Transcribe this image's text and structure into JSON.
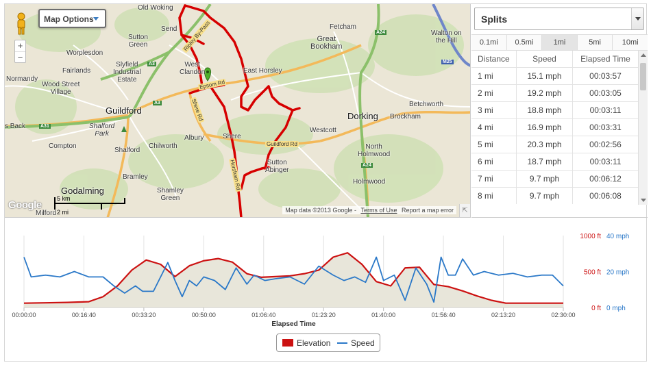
{
  "map": {
    "options_label": "Map Options",
    "zoom_in": "+",
    "zoom_out": "−",
    "google_logo": "Google",
    "scale_km": "5 km",
    "scale_mi": "2 mi",
    "attribution": "Map data ©2013 Google",
    "terms": "Terms of Use",
    "report": "Report a map error",
    "places": [
      {
        "text": "Old Woking",
        "size": "small"
      },
      {
        "text": "Send",
        "size": "small"
      },
      {
        "text": "Sutton\nGreen",
        "size": "small"
      },
      {
        "text": "Worplesdon",
        "size": "small"
      },
      {
        "text": "Fairlands",
        "size": "small"
      },
      {
        "text": "Slyfield\nIndustrial\nEstate",
        "size": "small"
      },
      {
        "text": "Normandy",
        "size": "small"
      },
      {
        "text": "Wood Street\nVillage",
        "size": "small"
      },
      {
        "text": "West\nClandon",
        "size": "small"
      },
      {
        "text": "Guildford",
        "size": "big"
      },
      {
        "text": "Shalford\nPark",
        "size": "small"
      },
      {
        "text": "Compton",
        "size": "small"
      },
      {
        "text": "Shalford",
        "size": "small"
      },
      {
        "text": "Chilworth",
        "size": "small"
      },
      {
        "text": "Albury",
        "size": "small"
      },
      {
        "text": "Shere",
        "size": "small"
      },
      {
        "text": "Bramley",
        "size": "small"
      },
      {
        "text": "Godalming",
        "size": "big"
      },
      {
        "text": "Shamley\nGreen",
        "size": "small"
      },
      {
        "text": "Milford",
        "size": "small"
      },
      {
        "text": "Fetcham",
        "size": "small"
      },
      {
        "text": "Great\nBookham",
        "size": "small"
      },
      {
        "text": "Walton on\nthe Hill",
        "size": "small"
      },
      {
        "text": "East Horsley",
        "size": "small"
      },
      {
        "text": "Westcott",
        "size": "small"
      },
      {
        "text": "Dorking",
        "size": "big"
      },
      {
        "text": "Brockham",
        "size": "small"
      },
      {
        "text": "Betchworth",
        "size": "small"
      },
      {
        "text": "North\nHolmwood",
        "size": "small"
      },
      {
        "text": "Sutton\nAbinger",
        "size": "small"
      },
      {
        "text": "Holmwood",
        "size": "small"
      },
      {
        "text": "s Back",
        "size": "small"
      }
    ],
    "roads": [
      "Ripley By-Pass",
      "Epsom Rd",
      "Shere Rd",
      "Guildford Rd",
      "Horsham Rd"
    ],
    "route_badges": [
      "A3",
      "A3",
      "A31",
      "A24",
      "A24",
      "M25"
    ]
  },
  "splits": {
    "selector_label": "Splits",
    "tabs": [
      "0.1mi",
      "0.5mi",
      "1mi",
      "5mi",
      "10mi"
    ],
    "active_tab": "1mi",
    "columns": [
      "Distance",
      "Speed",
      "Elapsed Time"
    ],
    "rows": [
      [
        "1 mi",
        "15.1 mph",
        "00:03:57"
      ],
      [
        "2 mi",
        "19.2 mph",
        "00:03:05"
      ],
      [
        "3 mi",
        "18.8 mph",
        "00:03:11"
      ],
      [
        "4 mi",
        "16.9 mph",
        "00:03:31"
      ],
      [
        "5 mi",
        "20.3 mph",
        "00:02:56"
      ],
      [
        "6 mi",
        "18.7 mph",
        "00:03:11"
      ],
      [
        "7 mi",
        "9.7 mph",
        "00:06:12"
      ],
      [
        "8 mi",
        "9.7 mph",
        "00:06:08"
      ]
    ]
  },
  "chart_data": {
    "type": "line",
    "xlabel": "Elapsed Time",
    "x_ticks": [
      "00:00:00",
      "00:16:40",
      "00:33:20",
      "00:50:00",
      "01:06:40",
      "01:23:20",
      "01:40:00",
      "01:56:40",
      "02:13:20",
      "02:30:00"
    ],
    "x_range_minutes": [
      0,
      150
    ],
    "y_left": {
      "ticks": [
        "0 ft",
        "500 ft",
        "1000 ft"
      ],
      "range": [
        0,
        1000
      ],
      "color": "#cc1111"
    },
    "y_right": {
      "ticks": [
        "0 mph",
        "20 mph",
        "40 mph"
      ],
      "range": [
        0,
        40
      ],
      "color": "#2a78c8"
    },
    "series": [
      {
        "name": "Elevation",
        "axis": "left",
        "unit": "ft",
        "color": "#cc1111",
        "x_minutes": [
          0,
          6,
          12,
          18,
          22,
          26,
          30,
          34,
          38,
          42,
          46,
          50,
          54,
          58,
          62,
          66,
          70,
          74,
          78,
          82,
          86,
          90,
          94,
          98,
          102,
          106,
          110,
          114,
          118,
          122,
          126,
          130,
          134,
          138,
          142,
          146,
          150
        ],
        "values": [
          60,
          65,
          70,
          80,
          150,
          300,
          520,
          660,
          600,
          430,
          580,
          650,
          680,
          630,
          470,
          420,
          430,
          440,
          470,
          520,
          700,
          760,
          600,
          360,
          300,
          550,
          560,
          320,
          290,
          230,
          160,
          100,
          60,
          60,
          60,
          60,
          60
        ]
      },
      {
        "name": "Speed",
        "axis": "right",
        "unit": "mph",
        "color": "#2a78c8",
        "x_minutes": [
          0,
          2,
          6,
          10,
          14,
          18,
          22,
          25,
          28,
          31,
          33,
          36,
          40,
          42,
          44,
          46,
          48,
          50,
          53,
          56,
          59,
          62,
          64,
          67,
          70,
          74,
          78,
          82,
          86,
          89,
          92,
          95,
          98,
          100,
          103,
          106,
          109,
          112,
          114,
          116,
          118,
          120,
          122,
          125,
          128,
          132,
          136,
          140,
          144,
          147,
          150
        ],
        "values": [
          28,
          17,
          18,
          17,
          20,
          17,
          17,
          12,
          8,
          12,
          9,
          9,
          25,
          15,
          6,
          15,
          12,
          17,
          15,
          10,
          22,
          13,
          18,
          15,
          16,
          17,
          13,
          23,
          18,
          15,
          17,
          14,
          28,
          15,
          18,
          4,
          22,
          13,
          3,
          28,
          18,
          18,
          27,
          18,
          20,
          18,
          19,
          17,
          18,
          18,
          12
        ]
      }
    ],
    "legend": [
      "Elevation",
      "Speed"
    ]
  }
}
